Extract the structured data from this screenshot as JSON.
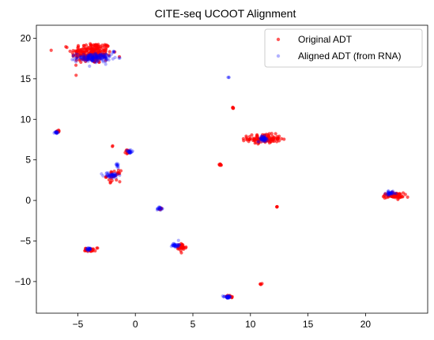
{
  "chart_data": {
    "type": "scatter",
    "title": "CITE-seq UCOOT Alignment",
    "xlabel": "",
    "ylabel": "",
    "xlim": [
      -8.6,
      25.4
    ],
    "ylim": [
      -13.9,
      21.6
    ],
    "x_ticks": [
      -5,
      0,
      5,
      10,
      15,
      20
    ],
    "y_ticks": [
      -10,
      -5,
      0,
      5,
      10,
      15,
      20
    ],
    "grid": false,
    "legend_position": "top-right",
    "series": [
      {
        "name": "Original ADT",
        "color": "#ff0000",
        "clusters": [
          {
            "cx": -3.8,
            "cy": 18.2,
            "sx": 1.45,
            "sy": 1.1,
            "n": 220
          },
          {
            "cx": 11.2,
            "cy": 7.6,
            "sx": 1.2,
            "sy": 0.45,
            "n": 120
          },
          {
            "cx": 22.4,
            "cy": 0.6,
            "sx": 0.75,
            "sy": 0.28,
            "n": 70
          },
          {
            "cx": -6.8,
            "cy": 8.5,
            "sx": 0.18,
            "sy": 0.16,
            "n": 10
          },
          {
            "cx": -1.9,
            "cy": 3.0,
            "sx": 0.5,
            "sy": 0.55,
            "n": 28
          },
          {
            "cx": -0.6,
            "cy": 6.0,
            "sx": 0.2,
            "sy": 0.25,
            "n": 10
          },
          {
            "cx": -2.0,
            "cy": 6.7,
            "sx": 0.05,
            "sy": 0.05,
            "n": 2
          },
          {
            "cx": 7.4,
            "cy": 4.4,
            "sx": 0.12,
            "sy": 0.07,
            "n": 10
          },
          {
            "cx": 8.5,
            "cy": 11.4,
            "sx": 0.08,
            "sy": 0.08,
            "n": 6
          },
          {
            "cx": 12.3,
            "cy": -0.8,
            "sx": 0.05,
            "sy": 0.05,
            "n": 4
          },
          {
            "cx": 4.0,
            "cy": -5.8,
            "sx": 0.35,
            "sy": 0.4,
            "n": 35
          },
          {
            "cx": -3.9,
            "cy": -6.1,
            "sx": 0.4,
            "sy": 0.18,
            "n": 25
          },
          {
            "cx": -3.3,
            "cy": -5.9,
            "sx": 0.05,
            "sy": 0.05,
            "n": 2
          },
          {
            "cx": 10.9,
            "cy": -10.3,
            "sx": 0.06,
            "sy": 0.06,
            "n": 4
          },
          {
            "cx": 8.1,
            "cy": -11.9,
            "sx": 0.25,
            "sy": 0.15,
            "n": 12
          },
          {
            "cx": 2.2,
            "cy": -1.0,
            "sx": 0.15,
            "sy": 0.15,
            "n": 6
          }
        ]
      },
      {
        "name": "Aligned ADT (from RNA)",
        "color": "#0000ff",
        "clusters": [
          {
            "cx": -3.6,
            "cy": 17.6,
            "sx": 1.25,
            "sy": 0.45,
            "n": 150
          },
          {
            "cx": -1.9,
            "cy": 18.3,
            "sx": 0.1,
            "sy": 0.1,
            "n": 4
          },
          {
            "cx": 11.1,
            "cy": 7.6,
            "sx": 0.35,
            "sy": 0.3,
            "n": 40
          },
          {
            "cx": 22.2,
            "cy": 0.9,
            "sx": 0.35,
            "sy": 0.18,
            "n": 30
          },
          {
            "cx": -6.9,
            "cy": 8.3,
            "sx": 0.18,
            "sy": 0.16,
            "n": 14
          },
          {
            "cx": -2.1,
            "cy": 3.1,
            "sx": 0.55,
            "sy": 0.3,
            "n": 40
          },
          {
            "cx": -1.6,
            "cy": 4.4,
            "sx": 0.2,
            "sy": 0.25,
            "n": 10
          },
          {
            "cx": -0.5,
            "cy": 6.0,
            "sx": 0.2,
            "sy": 0.2,
            "n": 20
          },
          {
            "cx": 8.1,
            "cy": 15.2,
            "sx": 0.04,
            "sy": 0.04,
            "n": 3
          },
          {
            "cx": 3.5,
            "cy": -5.5,
            "sx": 0.25,
            "sy": 0.28,
            "n": 30
          },
          {
            "cx": -4.0,
            "cy": -6.0,
            "sx": 0.22,
            "sy": 0.15,
            "n": 18
          },
          {
            "cx": 8.0,
            "cy": -11.9,
            "sx": 0.3,
            "sy": 0.15,
            "n": 30
          },
          {
            "cx": 2.1,
            "cy": -1.0,
            "sx": 0.18,
            "sy": 0.18,
            "n": 15
          }
        ]
      }
    ]
  }
}
